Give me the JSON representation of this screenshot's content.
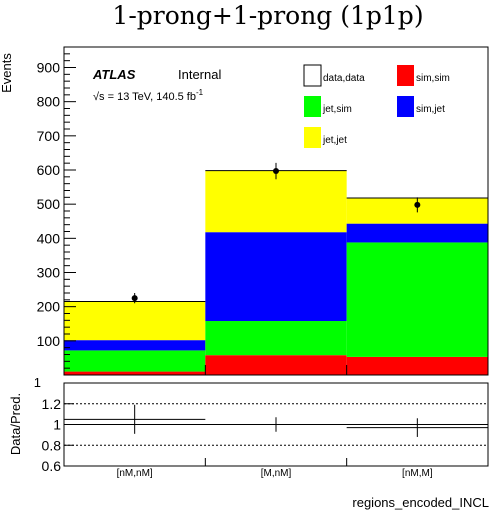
{
  "chart_data": {
    "type": "bar",
    "stacked": true,
    "title": "1-prong+1-prong (1p1p)",
    "xlabel": "regions_encoded_INCL",
    "ylabel": "Events",
    "ratio_ylabel": "Data/Pred.",
    "categories": [
      "[nM,nM]",
      "[M,nM]",
      "[nM,M]"
    ],
    "ylim": [
      0,
      960
    ],
    "yticks": [
      100,
      200,
      300,
      400,
      500,
      600,
      700,
      800,
      900
    ],
    "ratio_ylim": [
      0.6,
      1.4
    ],
    "ratio_yticks": [
      0.6,
      0.8,
      1,
      1.2
    ],
    "ratio_yticklabels": [
      "0.6",
      "0.8",
      "1",
      "1.2"
    ],
    "ratio_top_label": "1",
    "ratio_gridlines": [
      0.8,
      1.0,
      1.2
    ],
    "annotation": {
      "experiment": "ATLAS",
      "status": "Internal",
      "energy_lumi": "√s = 13 TeV, 140.5 fb",
      "lumi_superscript": "-1"
    },
    "series": [
      {
        "name": "sim,sim",
        "color": "#ff0000",
        "values": [
          10,
          58,
          53
        ]
      },
      {
        "name": "jet,sim",
        "color": "#00ff00",
        "values": [
          62,
          100,
          335
        ]
      },
      {
        "name": "sim,jet",
        "color": "#0000ff",
        "values": [
          30,
          260,
          55
        ]
      },
      {
        "name": "jet,jet",
        "color": "#ffff00",
        "values": [
          113,
          180,
          75
        ]
      }
    ],
    "data": {
      "name": "data,data",
      "values": [
        225,
        597,
        498
      ],
      "errors": [
        15,
        24,
        22
      ]
    },
    "ratio": {
      "values": [
        1.05,
        1.0,
        0.97
      ],
      "errors": [
        0.14,
        0.07,
        0.09
      ]
    },
    "legend": [
      {
        "name": "data,data",
        "color": "#ffffff"
      },
      {
        "name": "sim,sim",
        "color": "#ff0000"
      },
      {
        "name": "jet,sim",
        "color": "#00ff00"
      },
      {
        "name": "sim,jet",
        "color": "#0000ff"
      },
      {
        "name": "jet,jet",
        "color": "#ffff00"
      }
    ],
    "legend_position": "top-right",
    "grid": false
  }
}
